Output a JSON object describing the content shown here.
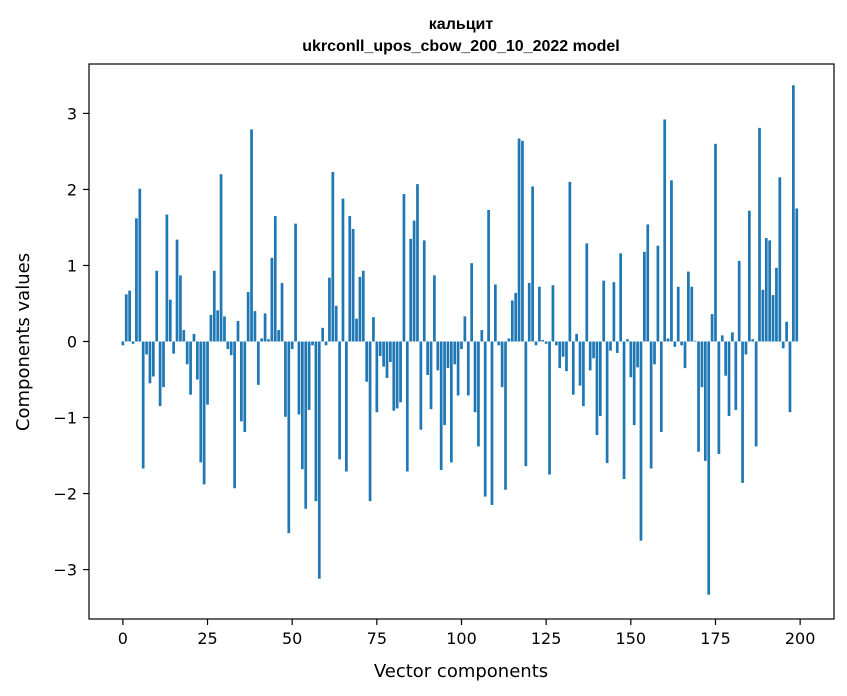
{
  "chart_data": {
    "type": "bar",
    "title": "кальцит",
    "subtitle": "ukrconll_upos_cbow_200_10_2022 model",
    "xlabel": "Vector components",
    "ylabel": "Components values",
    "xlim": [
      -10,
      210
    ],
    "ylim": [
      -3.65,
      3.65
    ],
    "xticks": [
      0,
      25,
      50,
      75,
      100,
      125,
      150,
      175,
      200
    ],
    "yticks": [
      -3,
      -2,
      -1,
      0,
      1,
      2,
      3
    ],
    "ytick_labels": [
      "−3",
      "−2",
      "−1",
      "0",
      "1",
      "2",
      "3"
    ],
    "grid": false,
    "bar_color": "#1f77b4",
    "x": [
      0,
      1,
      2,
      3,
      4,
      5,
      6,
      7,
      8,
      9,
      10,
      11,
      12,
      13,
      14,
      15,
      16,
      17,
      18,
      19,
      20,
      21,
      22,
      23,
      24,
      25,
      26,
      27,
      28,
      29,
      30,
      31,
      32,
      33,
      34,
      35,
      36,
      37,
      38,
      39,
      40,
      41,
      42,
      43,
      44,
      45,
      46,
      47,
      48,
      49,
      50,
      51,
      52,
      53,
      54,
      55,
      56,
      57,
      58,
      59,
      60,
      61,
      62,
      63,
      64,
      65,
      66,
      67,
      68,
      69,
      70,
      71,
      72,
      73,
      74,
      75,
      76,
      77,
      78,
      79,
      80,
      81,
      82,
      83,
      84,
      85,
      86,
      87,
      88,
      89,
      90,
      91,
      92,
      93,
      94,
      95,
      96,
      97,
      98,
      99,
      100,
      101,
      102,
      103,
      104,
      105,
      106,
      107,
      108,
      109,
      110,
      111,
      112,
      113,
      114,
      115,
      116,
      117,
      118,
      119,
      120,
      121,
      122,
      123,
      124,
      125,
      126,
      127,
      128,
      129,
      130,
      131,
      132,
      133,
      134,
      135,
      136,
      137,
      138,
      139,
      140,
      141,
      142,
      143,
      144,
      145,
      146,
      147,
      148,
      149,
      150,
      151,
      152,
      153,
      154,
      155,
      156,
      157,
      158,
      159,
      160,
      161,
      162,
      163,
      164,
      165,
      166,
      167,
      168,
      169,
      170,
      171,
      172,
      173,
      174,
      175,
      176,
      177,
      178,
      179,
      180,
      181,
      182,
      183,
      184,
      185,
      186,
      187,
      188,
      189,
      190,
      191,
      192,
      193,
      194,
      195,
      196,
      197,
      198,
      199
    ],
    "values": [
      -0.05,
      0.62,
      0.67,
      -0.03,
      1.62,
      2.01,
      -1.67,
      -0.17,
      -0.55,
      -0.46,
      0.93,
      -0.85,
      -0.6,
      1.67,
      0.55,
      -0.16,
      1.34,
      0.87,
      0.15,
      -0.3,
      -0.7,
      0.1,
      -0.5,
      -1.59,
      -1.88,
      -0.83,
      0.35,
      0.93,
      0.41,
      2.2,
      0.33,
      -0.1,
      -0.18,
      -1.93,
      0.27,
      -1.05,
      -1.19,
      0.65,
      2.79,
      0.4,
      -0.57,
      0.04,
      0.37,
      0.03,
      1.1,
      1.65,
      0.15,
      0.77,
      -0.99,
      -2.52,
      -0.1,
      1.55,
      -0.96,
      -1.68,
      -2.2,
      -0.9,
      -0.05,
      -2.1,
      -3.12,
      0.18,
      -0.05,
      0.84,
      2.23,
      0.47,
      -1.55,
      1.88,
      -1.71,
      1.65,
      1.48,
      0.3,
      0.85,
      0.93,
      -0.53,
      -2.1,
      0.32,
      -0.93,
      -0.19,
      -0.33,
      -0.48,
      -0.27,
      -0.91,
      -0.88,
      -0.8,
      1.94,
      -1.71,
      1.35,
      1.59,
      2.07,
      -1.16,
      1.33,
      -0.44,
      -0.89,
      0.87,
      -0.38,
      -1.69,
      -1.1,
      -0.35,
      -1.59,
      -0.3,
      -0.71,
      -0.1,
      0.33,
      -0.71,
      1.03,
      -0.93,
      -1.38,
      0.15,
      -2.04,
      1.73,
      -2.15,
      0.75,
      -0.05,
      -0.6,
      -1.95,
      0.04,
      0.54,
      0.64,
      2.67,
      2.64,
      -1.64,
      0.77,
      2.04,
      -0.05,
      0.72,
      0.02,
      -0.03,
      -1.75,
      0.74,
      -0.05,
      -0.35,
      -0.2,
      -0.39,
      2.1,
      -0.7,
      0.1,
      -0.58,
      -0.85,
      1.29,
      -0.38,
      -0.22,
      -1.23,
      -0.98,
      0.8,
      -1.6,
      -0.12,
      0.78,
      -0.15,
      1.16,
      -1.81,
      0.03,
      -0.47,
      -1.1,
      -0.34,
      -2.62,
      1.18,
      1.54,
      -1.67,
      -0.3,
      1.26,
      -1.19,
      2.92,
      0.04,
      2.12,
      -0.07,
      0.72,
      -0.05,
      -0.35,
      0.92,
      0.72,
      0.01,
      -1.45,
      -0.6,
      -1.57,
      -3.33,
      0.36,
      2.6,
      -1.48,
      0.08,
      -0.45,
      -0.98,
      0.12,
      -0.9,
      1.06,
      -1.86,
      -0.17,
      1.72,
      0.03,
      -1.38,
      2.81,
      0.68,
      1.36,
      1.33,
      0.61,
      0.97,
      2.16,
      -0.09,
      0.26,
      -0.93,
      3.37,
      1.75
    ]
  }
}
